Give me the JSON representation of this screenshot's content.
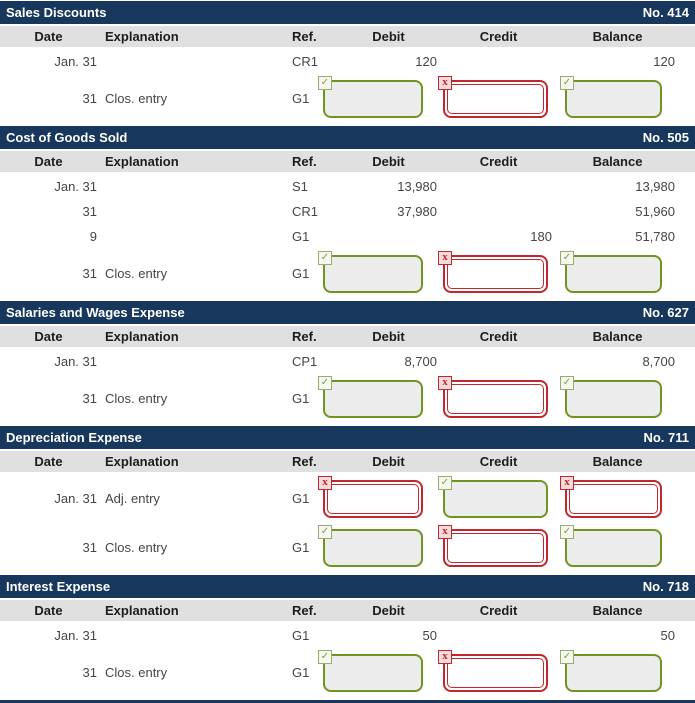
{
  "columns": [
    "Date",
    "Explanation",
    "Ref.",
    "Debit",
    "Credit",
    "Balance"
  ],
  "column_keys": [
    "date",
    "explanation",
    "ref",
    "debit",
    "credit",
    "balance"
  ],
  "icons": {
    "correct": "✓",
    "incorrect": "x"
  },
  "colors": {
    "header_bg": "#17375d",
    "header_text": "#ffffff",
    "column_header_bg": "#e0e0e0",
    "correct_green": "#6f9421",
    "incorrect_red": "#c1272d",
    "box_fill": "#ececec"
  },
  "accounts": [
    {
      "title": "Sales Discounts",
      "number": "No. 414",
      "rows": [
        {
          "date": "Jan. 31",
          "explanation": "",
          "ref": "CR1",
          "debit": "120",
          "credit": "",
          "balance": "120"
        },
        {
          "date": "31",
          "explanation": "Clos. entry",
          "ref": "G1",
          "debit_box": "correct",
          "credit_box": "incorrect",
          "balance_box": "correct"
        }
      ]
    },
    {
      "title": "Cost of Goods Sold",
      "number": "No. 505",
      "rows": [
        {
          "date": "Jan. 31",
          "explanation": "",
          "ref": "S1",
          "debit": "13,980",
          "credit": "",
          "balance": "13,980"
        },
        {
          "date": "31",
          "explanation": "",
          "ref": "CR1",
          "debit": "37,980",
          "credit": "",
          "balance": "51,960"
        },
        {
          "date": "9",
          "explanation": "",
          "ref": "G1",
          "debit": "",
          "credit": "180",
          "balance": "51,780"
        },
        {
          "date": "31",
          "explanation": "Clos. entry",
          "ref": "G1",
          "debit_box": "correct",
          "credit_box": "incorrect",
          "balance_box": "correct"
        }
      ]
    },
    {
      "title": "Salaries and Wages Expense",
      "number": "No. 627",
      "rows": [
        {
          "date": "Jan. 31",
          "explanation": "",
          "ref": "CP1",
          "debit": "8,700",
          "credit": "",
          "balance": "8,700"
        },
        {
          "date": "31",
          "explanation": "Clos. entry",
          "ref": "G1",
          "debit_box": "correct",
          "credit_box": "incorrect",
          "balance_box": "correct"
        }
      ]
    },
    {
      "title": "Depreciation Expense",
      "number": "No. 711",
      "rows": [
        {
          "date": "Jan. 31",
          "explanation": "Adj. entry",
          "ref": "G1",
          "debit_box": "incorrect",
          "credit_box": "correct",
          "balance_box": "incorrect"
        },
        {
          "date": "31",
          "explanation": "Clos. entry",
          "ref": "G1",
          "debit_box": "correct",
          "credit_box": "incorrect",
          "balance_box": "correct"
        }
      ]
    },
    {
      "title": "Interest Expense",
      "number": "No. 718",
      "rows": [
        {
          "date": "Jan. 31",
          "explanation": "",
          "ref": "G1",
          "debit": "50",
          "credit": "",
          "balance": "50"
        },
        {
          "date": "31",
          "explanation": "Clos. entry",
          "ref": "G1",
          "debit_box": "correct",
          "credit_box": "incorrect",
          "balance_box": "correct"
        }
      ]
    }
  ]
}
